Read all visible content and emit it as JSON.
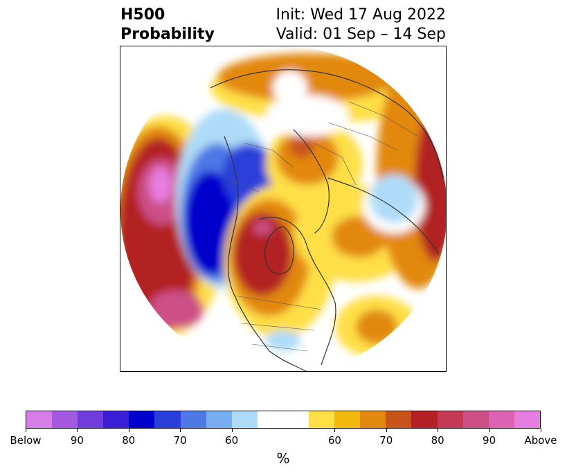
{
  "title": {
    "left_line1": "H500",
    "left_line2": "Probability",
    "right_line1": "Init: Wed 17 Aug 2022",
    "right_line2": "Valid: 01 Sep – 14 Sep"
  },
  "colorbar": {
    "colors": [
      "#d57ee8",
      "#a35ae0",
      "#6f3ddc",
      "#3a1ed6",
      "#0000cc",
      "#2a3fd9",
      "#4d78e6",
      "#78aeef",
      "#aedcf8",
      "#ffffff",
      "#ffdf46",
      "#f3b80c",
      "#e2880e",
      "#c8531a",
      "#b32124",
      "#c43a55",
      "#cc4f86",
      "#dd62b3",
      "#e67ee0"
    ],
    "labels": [
      "Below",
      "90",
      "80",
      "70",
      "60",
      "60",
      "70",
      "80",
      "90",
      "Above"
    ],
    "unit": "%"
  },
  "map": {
    "projection": "north-polar-stereographic",
    "anomalies": [
      {
        "region": "North Pacific",
        "category": "above",
        "peak": "Above"
      },
      {
        "region": "Gulf of Alaska / NW North America",
        "category": "below",
        "peak": "80"
      },
      {
        "region": "Canada / Hudson Bay",
        "category": "above",
        "peak": "80"
      },
      {
        "region": "Southern United States",
        "category": "below",
        "peak": "60"
      },
      {
        "region": "Central Atlantic",
        "category": "above",
        "peak": "70"
      },
      {
        "region": "Scandinavia / Northern Europe",
        "category": "above",
        "peak": "70"
      },
      {
        "region": "Western Russia",
        "category": "below",
        "peak": "60"
      },
      {
        "region": "Arctic Siberia",
        "category": "above",
        "peak": "70"
      }
    ]
  }
}
